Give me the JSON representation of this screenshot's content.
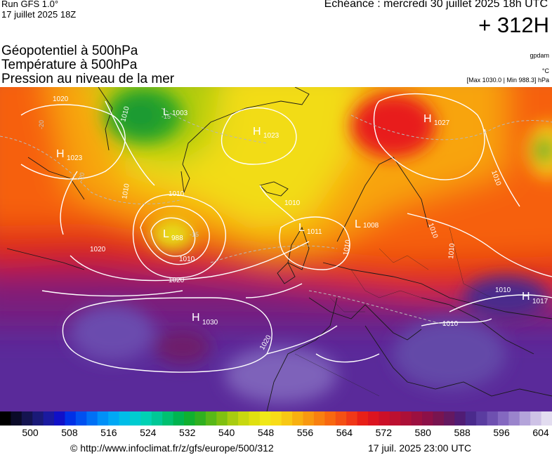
{
  "header": {
    "run": "Run GFS 1.0°",
    "run_date": "17 juillet 2025 18Z",
    "valid_time": "Echéance : mercredi 30 juillet 2025 18h UTC",
    "forecast_hour": "+ 312H"
  },
  "parameters": [
    "Géopotentiel à 500hPa",
    "Température à 500hPa",
    "Pression au niveau de la mer"
  ],
  "units": {
    "geopotential": "gpdam",
    "temperature": "°C",
    "mslp_range": "[Max 1030.0 | Min 988.3] hPa"
  },
  "map": {
    "isobar_labels": [
      "1020",
      "1010",
      "1010",
      "1010",
      "1010",
      "1020",
      "1010",
      "1020",
      "1010",
      "1010",
      "1010",
      "1010",
      "1010",
      "1020",
      "1010"
    ],
    "temp_labels": [
      "-20",
      "-20",
      "-15",
      "-15"
    ],
    "pressure_centers": [
      {
        "type": "H",
        "value": "1023"
      },
      {
        "type": "H",
        "value": "1023"
      },
      {
        "type": "H",
        "value": "1027"
      },
      {
        "type": "L",
        "value": "1003"
      },
      {
        "type": "L",
        "value": "988"
      },
      {
        "type": "L",
        "value": "1011"
      },
      {
        "type": "L",
        "value": "1008"
      },
      {
        "type": "H",
        "value": "1030"
      },
      {
        "type": "H",
        "value": "1017"
      }
    ]
  },
  "colorbar": {
    "labels": [
      "500",
      "508",
      "516",
      "524",
      "532",
      "540",
      "548",
      "556",
      "564",
      "572",
      "580",
      "588",
      "596",
      "604"
    ],
    "colors": [
      "#000000",
      "#0a0a28",
      "#141450",
      "#1a1a78",
      "#1a1aa0",
      "#1010c8",
      "#0030e6",
      "#0050f0",
      "#0070f5",
      "#0090f8",
      "#00a8f5",
      "#00bde8",
      "#00ccd0",
      "#00d2b4",
      "#00c896",
      "#00c070",
      "#00b450",
      "#10b030",
      "#30b020",
      "#58b818",
      "#80c010",
      "#a8cc10",
      "#c8d810",
      "#e0e010",
      "#f0e818",
      "#f8dc18",
      "#f8c814",
      "#f8b010",
      "#f89810",
      "#f88010",
      "#f86810",
      "#f45014",
      "#f03818",
      "#e82018",
      "#dc1420",
      "#cc1028",
      "#bc1030",
      "#ac1038",
      "#9c1040",
      "#8c1048",
      "#781450",
      "#641860",
      "#501c74",
      "#4a2a8c",
      "#5a3ca0",
      "#6e50b0",
      "#8468c0",
      "#9a84cc",
      "#b4a4da",
      "#cec2e6",
      "#e2dcf0"
    ]
  },
  "footer": {
    "url": "© http://www.infoclimat.fr/z/gfs/europe/500/312",
    "date": "17 juil. 2025 23:00 UTC"
  }
}
